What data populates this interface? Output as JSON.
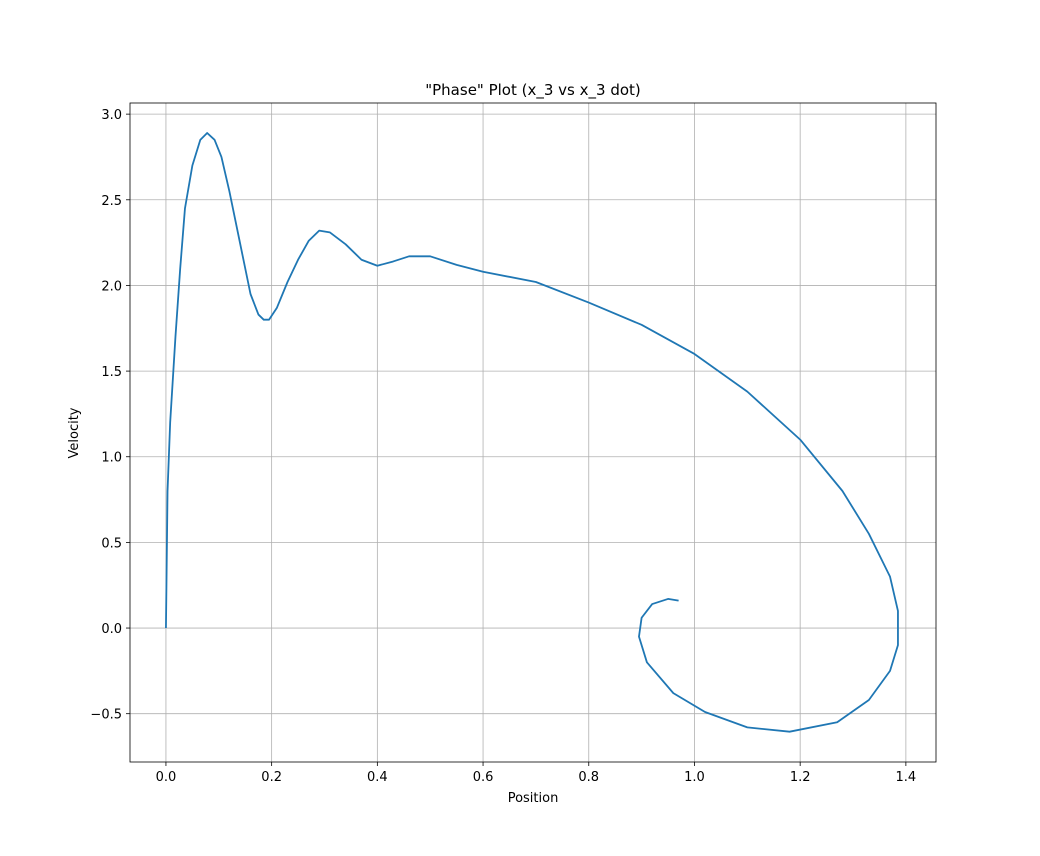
{
  "chart_data": {
    "type": "line",
    "title": "\"Phase\" Plot (x_3 vs x_3 dot)",
    "xlabel": "Position",
    "ylabel": "Velocity",
    "x": [
      0,
      0.003,
      0.008,
      0.018,
      0.027,
      0.036,
      0.05,
      0.065,
      0.078,
      0.092,
      0.105,
      0.12,
      0.14,
      0.16,
      0.175,
      0.185,
      0.195,
      0.21,
      0.23,
      0.25,
      0.27,
      0.29,
      0.31,
      0.34,
      0.37,
      0.4,
      0.43,
      0.46,
      0.5,
      0.55,
      0.6,
      0.7,
      0.8,
      0.9,
      1.0,
      1.1,
      1.2,
      1.28,
      1.33,
      1.37,
      1.385,
      1.385,
      1.37,
      1.33,
      1.27,
      1.18,
      1.1,
      1.02,
      0.96,
      0.91,
      0.895,
      0.9,
      0.92,
      0.95,
      0.97
    ],
    "series": [
      {
        "color": "#1f77b4",
        "values": [
          0,
          0.8,
          1.2,
          1.7,
          2.1,
          2.45,
          2.7,
          2.85,
          2.89,
          2.85,
          2.75,
          2.55,
          2.25,
          1.95,
          1.83,
          1.8,
          1.8,
          1.87,
          2.02,
          2.15,
          2.26,
          2.32,
          2.31,
          2.24,
          2.15,
          2.115,
          2.14,
          2.17,
          2.17,
          2.12,
          2.08,
          2.02,
          1.9,
          1.77,
          1.6,
          1.38,
          1.1,
          0.8,
          0.55,
          0.3,
          0.1,
          -0.1,
          -0.25,
          -0.42,
          -0.55,
          -0.605,
          -0.58,
          -0.49,
          -0.38,
          -0.2,
          -0.05,
          0.06,
          0.14,
          0.17,
          0.16
        ]
      }
    ],
    "xlim": [
      -0.068,
      1.457
    ],
    "ylim": [
      -0.782,
      3.065
    ],
    "xticks": [
      {
        "value": 0,
        "label": "0.0"
      },
      {
        "value": 0.2,
        "label": "0.2"
      },
      {
        "value": 0.4,
        "label": "0.4"
      },
      {
        "value": 0.6,
        "label": "0.6"
      },
      {
        "value": 0.8,
        "label": "0.8"
      },
      {
        "value": 1,
        "label": "1.0"
      },
      {
        "value": 1.2,
        "label": "1.2"
      },
      {
        "value": 1.4,
        "label": "1.4"
      }
    ],
    "yticks": [
      {
        "value": -0.5,
        "label": "−0.5"
      },
      {
        "value": 0,
        "label": "0.0"
      },
      {
        "value": 0.5,
        "label": "0.5"
      },
      {
        "value": 1,
        "label": "1.0"
      },
      {
        "value": 1.5,
        "label": "1.5"
      },
      {
        "value": 2,
        "label": "2.0"
      },
      {
        "value": 2.5,
        "label": "2.5"
      },
      {
        "value": 3,
        "label": "3.0"
      }
    ],
    "grid": true
  }
}
